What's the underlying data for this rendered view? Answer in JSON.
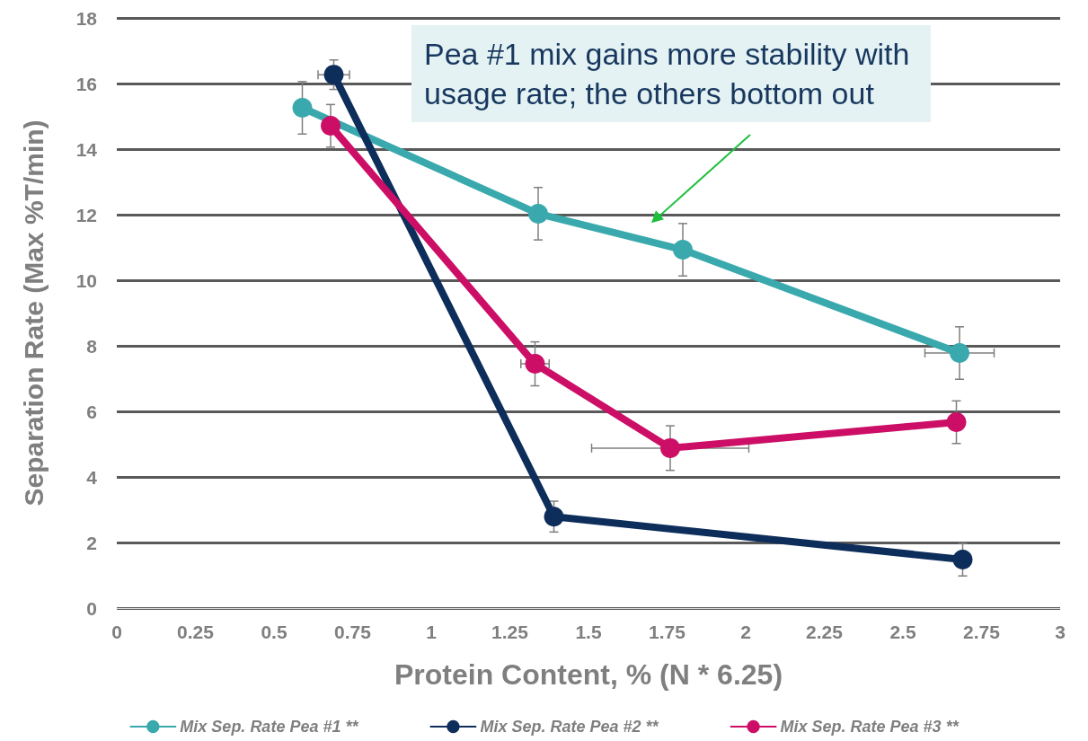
{
  "chart_data": {
    "type": "line",
    "xlabel": "Protein Content, % (N * 6.25)",
    "ylabel": "Separation Rate (Max %T/min)",
    "xlim": [
      0,
      3
    ],
    "xticks": [
      0,
      0.25,
      0.5,
      0.75,
      1,
      1.25,
      1.5,
      1.75,
      2,
      2.25,
      2.5,
      2.75,
      3
    ],
    "ylim": [
      0,
      18
    ],
    "yticks": [
      0,
      2,
      4,
      6,
      8,
      10,
      12,
      14,
      16,
      18
    ],
    "grid": "y",
    "legend": "bottom",
    "marker": "circle",
    "line_style": "solid",
    "annotations": [
      "Pea #1 mix gains more stability with usage rate; the others bottom out"
    ],
    "series": [
      {
        "name": "Mix Sep. Rate Pea #1 **",
        "color": "#3aa9ad",
        "x": [
          0.59,
          1.34,
          1.8,
          2.68
        ],
        "values": [
          15.26,
          12.03,
          10.93,
          7.78
        ],
        "errors": [
          0.8,
          0.8,
          0.8,
          0.8
        ],
        "xerrors": [
          null,
          null,
          null,
          0.11
        ]
      },
      {
        "name": "Mix Sep. Rate Pea #2 **",
        "color": "#0d2d5a",
        "x": [
          0.69,
          1.39,
          2.69
        ],
        "values": [
          16.27,
          2.79,
          1.48
        ],
        "errors": [
          0.45,
          0.47,
          0.5
        ],
        "xerrors": [
          0.05,
          null,
          null
        ]
      },
      {
        "name": "Mix Sep. Rate Pea #3 **",
        "color": "#cc0e66",
        "x": [
          0.68,
          1.33,
          1.76,
          2.67
        ],
        "values": [
          14.71,
          7.45,
          4.88,
          5.67
        ],
        "errors": [
          0.65,
          0.67,
          0.68,
          0.65
        ],
        "xerrors": [
          null,
          0.045,
          0.25,
          null
        ]
      }
    ]
  }
}
